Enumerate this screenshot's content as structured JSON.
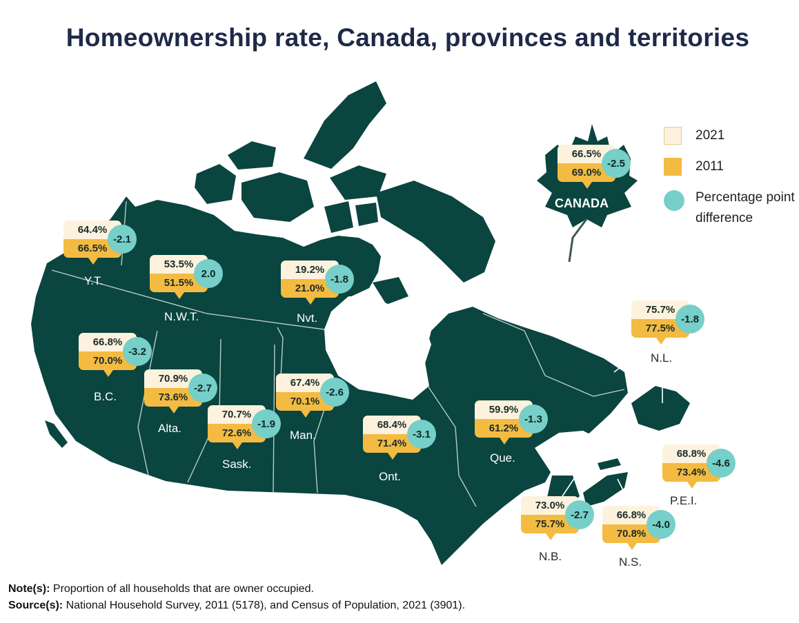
{
  "title": "Homeownership rate, Canada, provinces and territories",
  "legend": {
    "y2021": "2021",
    "y2011": "2011",
    "difference": "Percentage point difference"
  },
  "canada": {
    "name": "CANADA",
    "v2021": "66.5%",
    "v2011": "69.0%",
    "diff": "-2.5"
  },
  "regions": {
    "yt": {
      "name": "Y.T.",
      "v2021": "64.4%",
      "v2011": "66.5%",
      "diff": "-2.1"
    },
    "nwt": {
      "name": "N.W.T.",
      "v2021": "53.5%",
      "v2011": "51.5%",
      "diff": "2.0"
    },
    "nvt": {
      "name": "Nvt.",
      "v2021": "19.2%",
      "v2011": "21.0%",
      "diff": "-1.8"
    },
    "bc": {
      "name": "B.C.",
      "v2021": "66.8%",
      "v2011": "70.0%",
      "diff": "-3.2"
    },
    "ab": {
      "name": "Alta.",
      "v2021": "70.9%",
      "v2011": "73.6%",
      "diff": "-2.7"
    },
    "sk": {
      "name": "Sask.",
      "v2021": "70.7%",
      "v2011": "72.6%",
      "diff": "-1.9"
    },
    "mb": {
      "name": "Man.",
      "v2021": "67.4%",
      "v2011": "70.1%",
      "diff": "-2.6"
    },
    "on": {
      "name": "Ont.",
      "v2021": "68.4%",
      "v2011": "71.4%",
      "diff": "-3.1"
    },
    "qc": {
      "name": "Que.",
      "v2021": "59.9%",
      "v2011": "61.2%",
      "diff": "-1.3"
    },
    "nl": {
      "name": "N.L.",
      "v2021": "75.7%",
      "v2011": "77.5%",
      "diff": "-1.8"
    },
    "pei": {
      "name": "P.E.I.",
      "v2021": "68.8%",
      "v2011": "73.4%",
      "diff": "-4.6"
    },
    "nb": {
      "name": "N.B.",
      "v2021": "73.0%",
      "v2011": "75.7%",
      "diff": "-2.7"
    },
    "ns": {
      "name": "N.S.",
      "v2021": "66.8%",
      "v2011": "70.8%",
      "diff": "-4.0"
    }
  },
  "footer": {
    "note_label": "Note(s):",
    "note_text": "Proportion of all households that are owner occupied.",
    "source_label": "Source(s):",
    "source_text": "National Household Survey, 2011 (5178), and Census of Population, 2021 (3901)."
  },
  "colors": {
    "land": "#0a4540",
    "value_2021": "#fdf2dd",
    "value_2011": "#f3bb41",
    "difference": "#76cfc8",
    "title": "#1d2a48"
  }
}
